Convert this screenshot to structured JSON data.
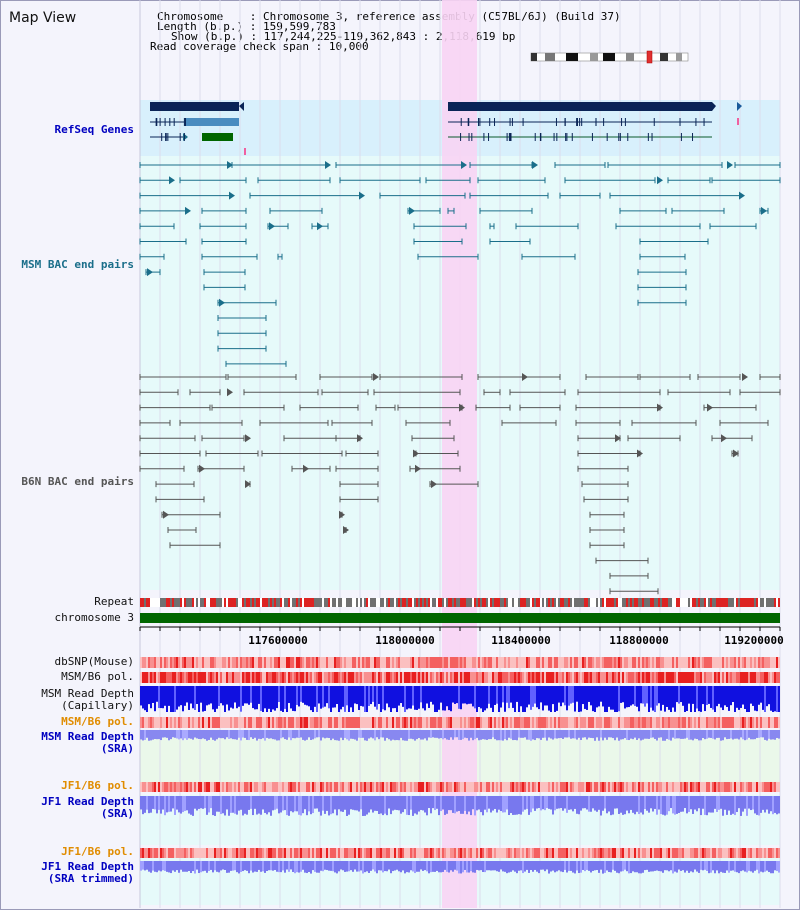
{
  "app": {
    "title": "Map View"
  },
  "info": {
    "chromosome_key": "Chromosome",
    "chromosome_val": "Chromosome 3, reference assembly (C57BL/6J) (Build 37)",
    "length_key": "Length (b.p.)",
    "length_val": "159,599,783",
    "show_key": "Show (b.p.)",
    "show_val": "117,244,225-119,362,843 : 2,118,619 bp",
    "coverage_key": "Read coverage check span",
    "coverage_val": "10,000"
  },
  "tracks": {
    "refseq": "RefSeq Genes",
    "msm_bac": "MSM BAC end pairs",
    "b6n_bac": "B6N BAC end pairs",
    "repeat": "Repeat",
    "chromosome": "chromosome 3",
    "dbsnp": "dbSNP(Mouse)",
    "msm_b6_pol": "MSM/B6 pol.",
    "msm_depth_cap_1": "MSM Read Depth",
    "msm_depth_cap_2": "(Capillary)",
    "msm_b6_pol_sra": "MSM/B6 pol.",
    "msm_depth_sra_1": "MSM Read Depth",
    "msm_depth_sra_2": "(SRA)",
    "jf1_b6_pol": "JF1/B6 pol.",
    "jf1_depth_1": "JF1 Read Depth",
    "jf1_depth_2": "(SRA)",
    "jf1_b6_pol_2": "JF1/B6 pol.",
    "jf1_trim_1": "JF1 Read Depth",
    "jf1_trim_2": "(SRA trimmed)"
  },
  "axis": {
    "ticks": [
      "117600000",
      "118000000",
      "118400000",
      "118800000",
      "119200000"
    ]
  },
  "colors": {
    "refseq": "#0000c0",
    "msm_bac": "#1a6e8a",
    "b6n_bac": "#555555",
    "orange": "#e08c00",
    "blue": "#0000c0",
    "highlight": "#f8d4f4",
    "chromosome": "#006600"
  }
}
